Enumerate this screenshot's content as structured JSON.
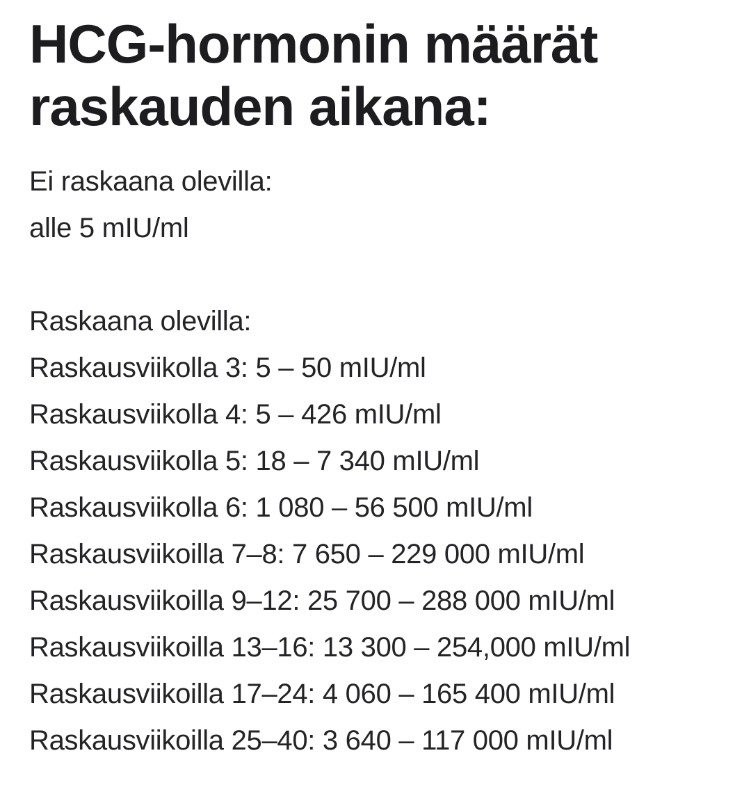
{
  "colors": {
    "background": "#ffffff",
    "heading_text": "#1d1d1f",
    "body_text": "#242426"
  },
  "article": {
    "title": "HCG-hormonin määrät raskauden aikana:",
    "not_pregnant": {
      "heading": "Ei raskaana olevilla:",
      "value_line": "alle 5 mIU/ml"
    },
    "pregnant": {
      "heading": "Raskaana olevilla:",
      "rows": [
        "Raskausviikolla 3: 5 – 50 mIU/ml",
        "Raskausviikolla 4: 5 – 426 mIU/ml",
        "Raskausviikolla 5: 18 – 7 340 mIU/ml",
        "Raskausviikolla 6: 1 080 – 56 500 mIU/ml",
        "Raskausviikoilla 7–8: 7 650 – 229 000 mIU/ml",
        "Raskausviikoilla 9–12: 25 700 – 288 000 mIU/ml",
        "Raskausviikoilla 13–16: 13 300 – 254,000 mIU/ml",
        "Raskausviikoilla 17–24: 4 060 – 165 400 mIU/ml",
        "Raskausviikoilla 25–40: 3 640 – 117 000 mIU/ml"
      ]
    }
  }
}
